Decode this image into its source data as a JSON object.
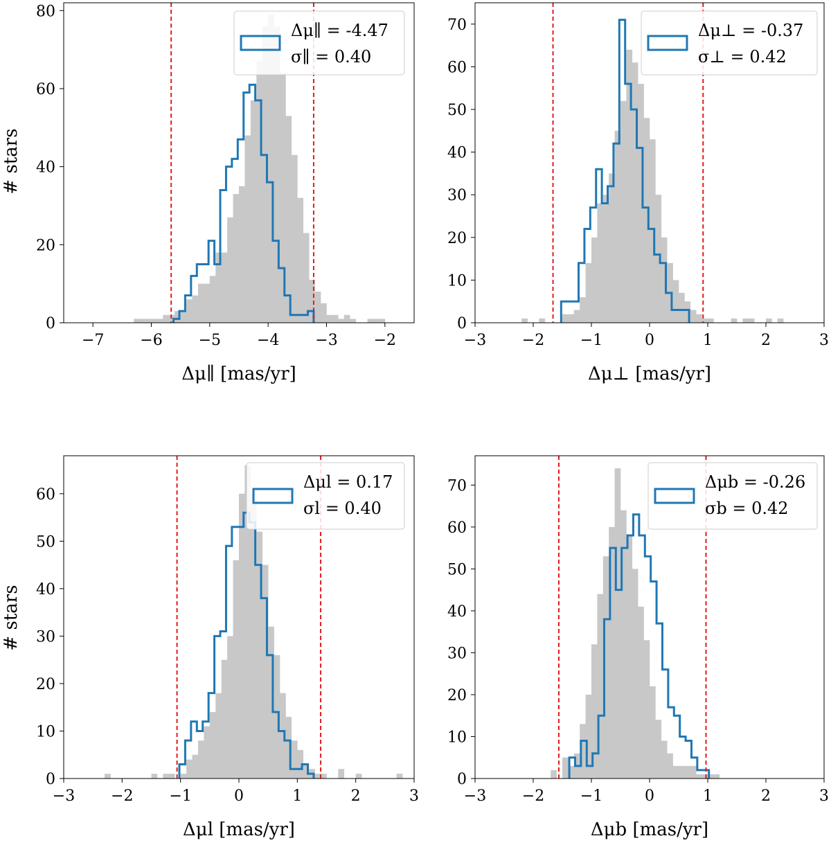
{
  "figure": {
    "ylabel": "# stars"
  },
  "chart_data": [
    {
      "type": "histogram",
      "xlabel": "Δμ∥ [mas/yr]",
      "ylabel": "# stars",
      "xlim": [
        -7.5,
        -1.5
      ],
      "ylim": [
        0,
        82
      ],
      "xticks": [
        -7,
        -6,
        -5,
        -4,
        -3,
        -2
      ],
      "yticks": [
        0,
        20,
        40,
        60,
        80
      ],
      "cut_lines": [
        -5.66,
        -3.22
      ],
      "legend": {
        "line1": "Δμ∥ = -4.47",
        "line2": "σ∥ = 0.40",
        "placement": "top-right"
      },
      "gray_hist": {
        "start": -6.3,
        "width": 0.1,
        "counts": [
          1,
          1,
          1,
          1,
          1,
          2,
          2,
          3,
          3,
          6,
          7,
          10,
          10,
          12,
          18,
          18,
          27,
          33,
          35,
          48,
          57,
          67,
          76,
          79,
          76,
          64,
          53,
          43,
          32,
          23,
          11,
          8,
          5,
          2,
          2,
          1,
          2,
          1,
          0,
          0,
          1,
          1,
          1
        ]
      },
      "step_hist": {
        "start": -5.62,
        "width": 0.1,
        "counts": [
          1,
          3,
          7,
          12,
          15,
          15,
          21,
          15,
          34,
          40,
          42,
          47,
          59,
          61,
          57,
          43,
          36,
          21,
          14,
          7,
          2,
          2,
          2,
          3
        ]
      }
    },
    {
      "type": "histogram",
      "xlabel": "Δμ⊥ [mas/yr]",
      "ylabel": "",
      "xlim": [
        -3,
        3
      ],
      "ylim": [
        0,
        75
      ],
      "xticks": [
        -3,
        -2,
        -1,
        0,
        1,
        2,
        3
      ],
      "yticks": [
        0,
        10,
        20,
        30,
        40,
        50,
        60,
        70
      ],
      "cut_lines": [
        -1.66,
        0.92
      ],
      "legend": {
        "line1": "Δμ⊥ = -0.37",
        "line2": "σ⊥ = 0.42",
        "placement": "top-right"
      },
      "gray_hist": {
        "start": -2.2,
        "width": 0.1,
        "counts": [
          1,
          0,
          0,
          1,
          0,
          0,
          0,
          2,
          2,
          3,
          6,
          14,
          20,
          28,
          30,
          35,
          45,
          52,
          64,
          61,
          56,
          48,
          43,
          30,
          20,
          14,
          10,
          7,
          5,
          3,
          2,
          1,
          1,
          0,
          0,
          0,
          1,
          0,
          1,
          1,
          0,
          0,
          1,
          0,
          1
        ]
      },
      "step_hist": {
        "start": -1.52,
        "width": 0.1,
        "counts": [
          5,
          5,
          5,
          14,
          22,
          27,
          36,
          28,
          32,
          42,
          71,
          56,
          50,
          41,
          27,
          22,
          16,
          14,
          7,
          3,
          3,
          3
        ]
      }
    },
    {
      "type": "histogram",
      "xlabel": "Δμl [mas/yr]",
      "ylabel": "# stars",
      "xlim": [
        -3,
        3
      ],
      "ylim": [
        0,
        68
      ],
      "xticks": [
        -3,
        -2,
        -1,
        0,
        1,
        2,
        3
      ],
      "yticks": [
        0,
        10,
        20,
        30,
        40,
        50,
        60
      ],
      "cut_lines": [
        -1.06,
        1.4
      ],
      "legend": {
        "line1": "Δμl = 0.17",
        "line2": "σl = 0.40",
        "placement": "top-right"
      },
      "gray_hist": {
        "start": -2.3,
        "width": 0.1,
        "counts": [
          1,
          0,
          0,
          0,
          0,
          0,
          0,
          0,
          1,
          0,
          1,
          1,
          0,
          1,
          4,
          5,
          8,
          11,
          14,
          18,
          25,
          30,
          46,
          60,
          66,
          60,
          52,
          45,
          32,
          26,
          18,
          13,
          8,
          6,
          3,
          2,
          1,
          1,
          0,
          0,
          2,
          0,
          0,
          1,
          0,
          0,
          0,
          0,
          0,
          0,
          1
        ]
      },
      "step_hist": {
        "start": -1.02,
        "width": 0.1,
        "counts": [
          3,
          8,
          12,
          10,
          12,
          18,
          30,
          31,
          49,
          53,
          53,
          56,
          54,
          45,
          38,
          26,
          14,
          10,
          8,
          2,
          2,
          3,
          1
        ]
      }
    },
    {
      "type": "histogram",
      "xlabel": "Δμb [mas/yr]",
      "ylabel": "",
      "xlim": [
        -3,
        3
      ],
      "ylim": [
        0,
        77
      ],
      "xticks": [
        -3,
        -2,
        -1,
        0,
        1,
        2,
        3
      ],
      "yticks": [
        0,
        10,
        20,
        30,
        40,
        50,
        60,
        70
      ],
      "cut_lines": [
        -1.56,
        0.97
      ],
      "legend": {
        "line1": "Δμb = -0.26",
        "line2": "σb = 0.42",
        "placement": "top-right"
      },
      "gray_hist": {
        "start": -1.7,
        "width": 0.1,
        "counts": [
          2,
          0,
          5,
          3,
          6,
          13,
          20,
          32,
          44,
          53,
          60,
          74,
          64,
          58,
          50,
          41,
          33,
          22,
          14,
          9,
          6,
          3,
          3,
          3,
          3,
          1,
          1,
          1,
          1
        ]
      },
      "step_hist": {
        "start": -1.38,
        "width": 0.1,
        "counts": [
          5,
          3,
          9,
          3,
          6,
          15,
          38,
          55,
          45,
          55,
          58,
          63,
          58,
          53,
          47,
          37,
          26,
          17,
          15,
          10,
          9,
          5,
          2,
          2
        ]
      }
    }
  ]
}
